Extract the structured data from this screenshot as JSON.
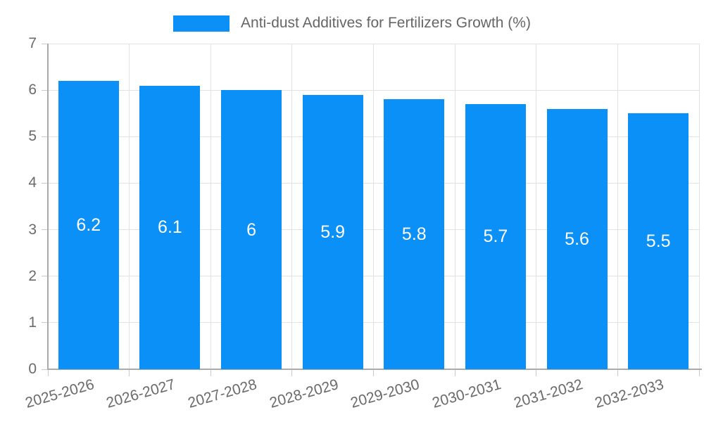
{
  "colors": {
    "background": "#ffffff",
    "bar": "#0a90f6",
    "grid": "#e2e2e2",
    "axis_line": "#ababab",
    "tick_mark": "#c9c9c9",
    "tick_text": "#6b6b6b",
    "legend_text": "#666666",
    "value_label_text": "#ffffff"
  },
  "legend": {
    "label": "Anti-dust Additives for Fertilizers Growth (%)"
  },
  "chart_data": {
    "type": "bar",
    "title": "",
    "xlabel": "",
    "ylabel": "",
    "legend": "Anti-dust Additives for Fertilizers Growth (%)",
    "legend_position": "top",
    "grid": true,
    "categories": [
      "2025-2026",
      "2026-2027",
      "2027-2028",
      "2028-2029",
      "2029-2030",
      "2030-2031",
      "2031-2032",
      "2032-2033"
    ],
    "values": [
      6.2,
      6.1,
      6.0,
      5.9,
      5.8,
      5.7,
      5.6,
      5.5
    ],
    "value_labels": [
      "6.2",
      "6.1",
      "6",
      "5.9",
      "5.8",
      "5.7",
      "5.6",
      "5.5"
    ],
    "ylim": [
      0,
      7
    ],
    "yticks": [
      0,
      1,
      2,
      3,
      4,
      5,
      6,
      7
    ],
    "x_label_rotation_deg": -16
  }
}
